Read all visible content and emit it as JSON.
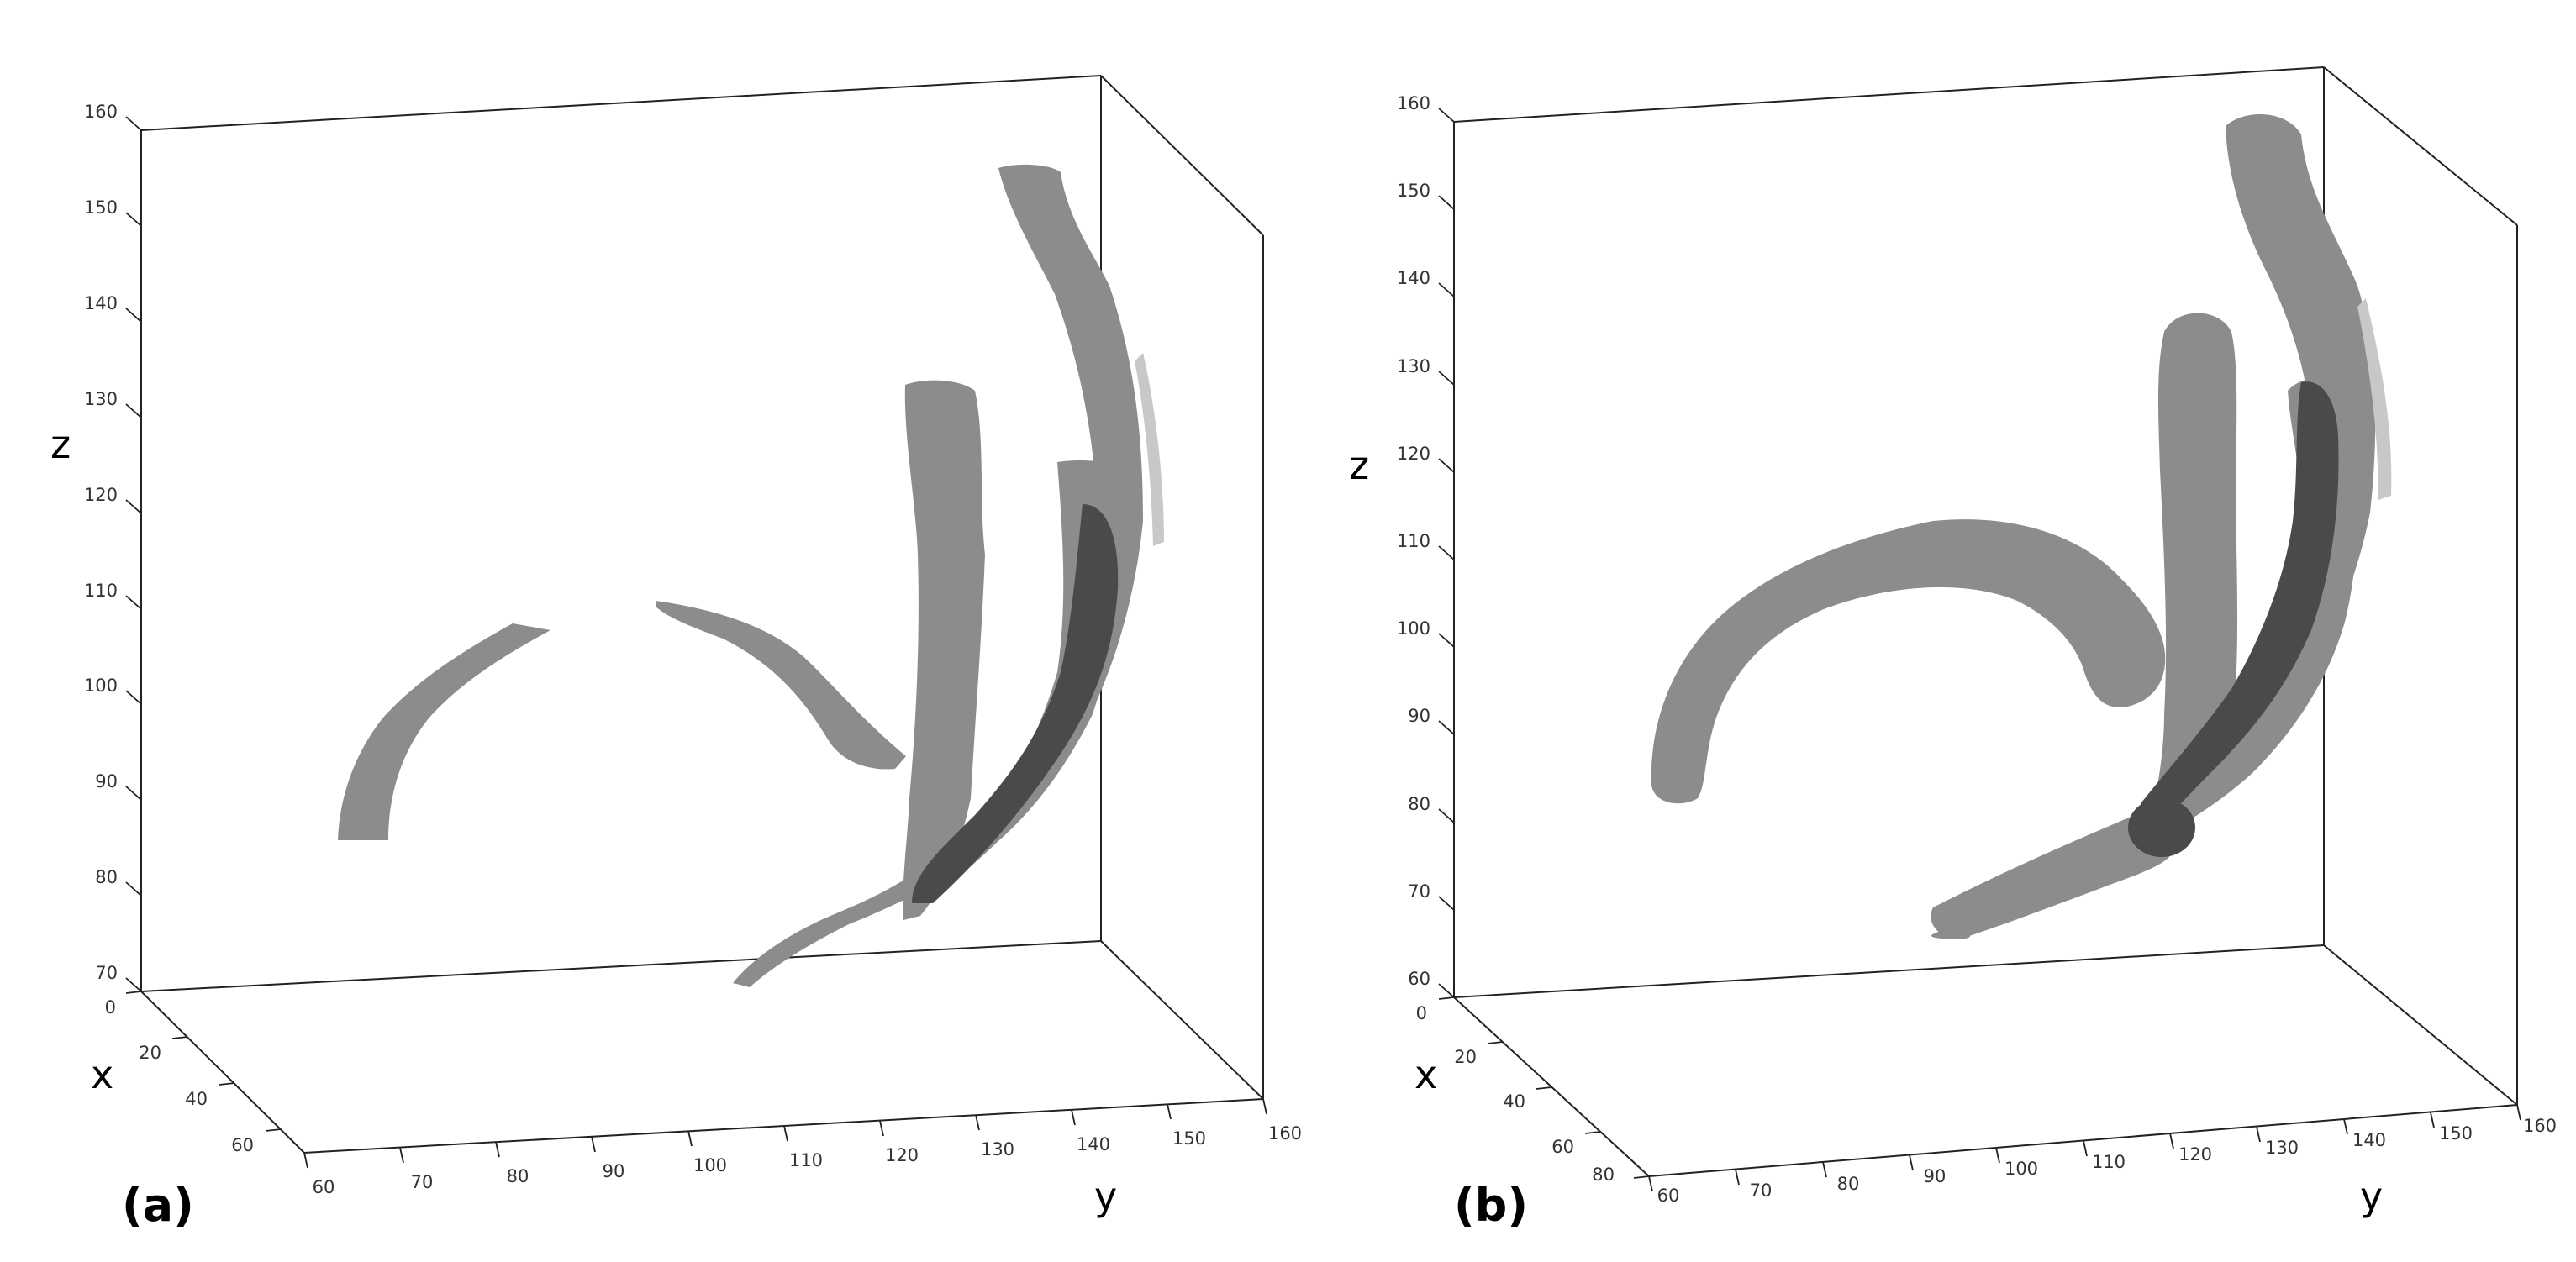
{
  "chart_data": [
    {
      "type": "surface3d",
      "panel_label": "(a)",
      "xlabel": "x",
      "ylabel": "y",
      "zlabel": "z",
      "x_ticks": [
        "0",
        "20",
        "40",
        "60"
      ],
      "y_ticks": [
        "60",
        "70",
        "80",
        "90",
        "100",
        "110",
        "120",
        "130",
        "140",
        "150",
        "160"
      ],
      "z_ticks": [
        "70",
        "80",
        "90",
        "100",
        "110",
        "120",
        "130",
        "140",
        "150",
        "160"
      ],
      "xlim": [
        0,
        70
      ],
      "ylim": [
        60,
        160
      ],
      "zlim": [
        70,
        160
      ],
      "surface_color": "#8c8c8c",
      "overlap_color": "#4a4a4a"
    },
    {
      "type": "surface3d",
      "panel_label": "(b)",
      "xlabel": "x",
      "ylabel": "y",
      "zlabel": "z",
      "x_ticks": [
        "0",
        "20",
        "40",
        "60",
        "80"
      ],
      "y_ticks": [
        "60",
        "70",
        "80",
        "90",
        "100",
        "110",
        "120",
        "130",
        "140",
        "150",
        "160"
      ],
      "z_ticks": [
        "60",
        "70",
        "80",
        "90",
        "100",
        "110",
        "120",
        "130",
        "140",
        "150",
        "160"
      ],
      "xlim": [
        0,
        80
      ],
      "ylim": [
        60,
        160
      ],
      "zlim": [
        60,
        160
      ],
      "surface_color": "#8c8c8c",
      "overlap_color": "#4a4a4a"
    }
  ]
}
